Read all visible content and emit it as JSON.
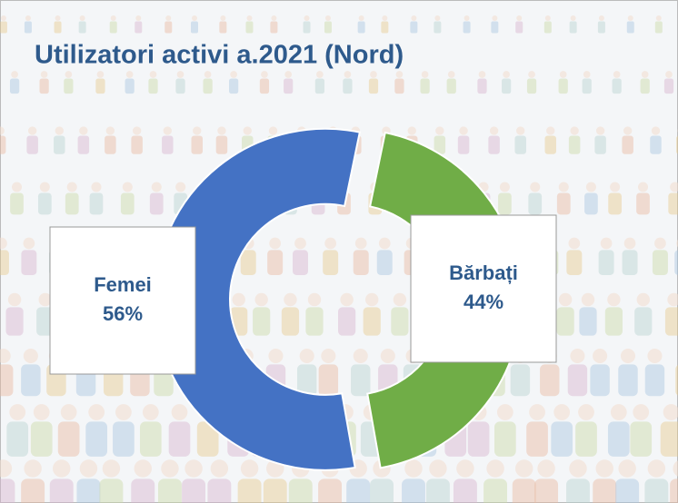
{
  "chart_data": {
    "type": "donut",
    "title": "Utilizatori activi a.2021 (Nord)",
    "categories": [
      "Femei",
      "Bărbați"
    ],
    "values": [
      56,
      44
    ],
    "value_labels": [
      "56%",
      "44%"
    ],
    "colors": [
      "#4472c4",
      "#70ad47"
    ]
  }
}
